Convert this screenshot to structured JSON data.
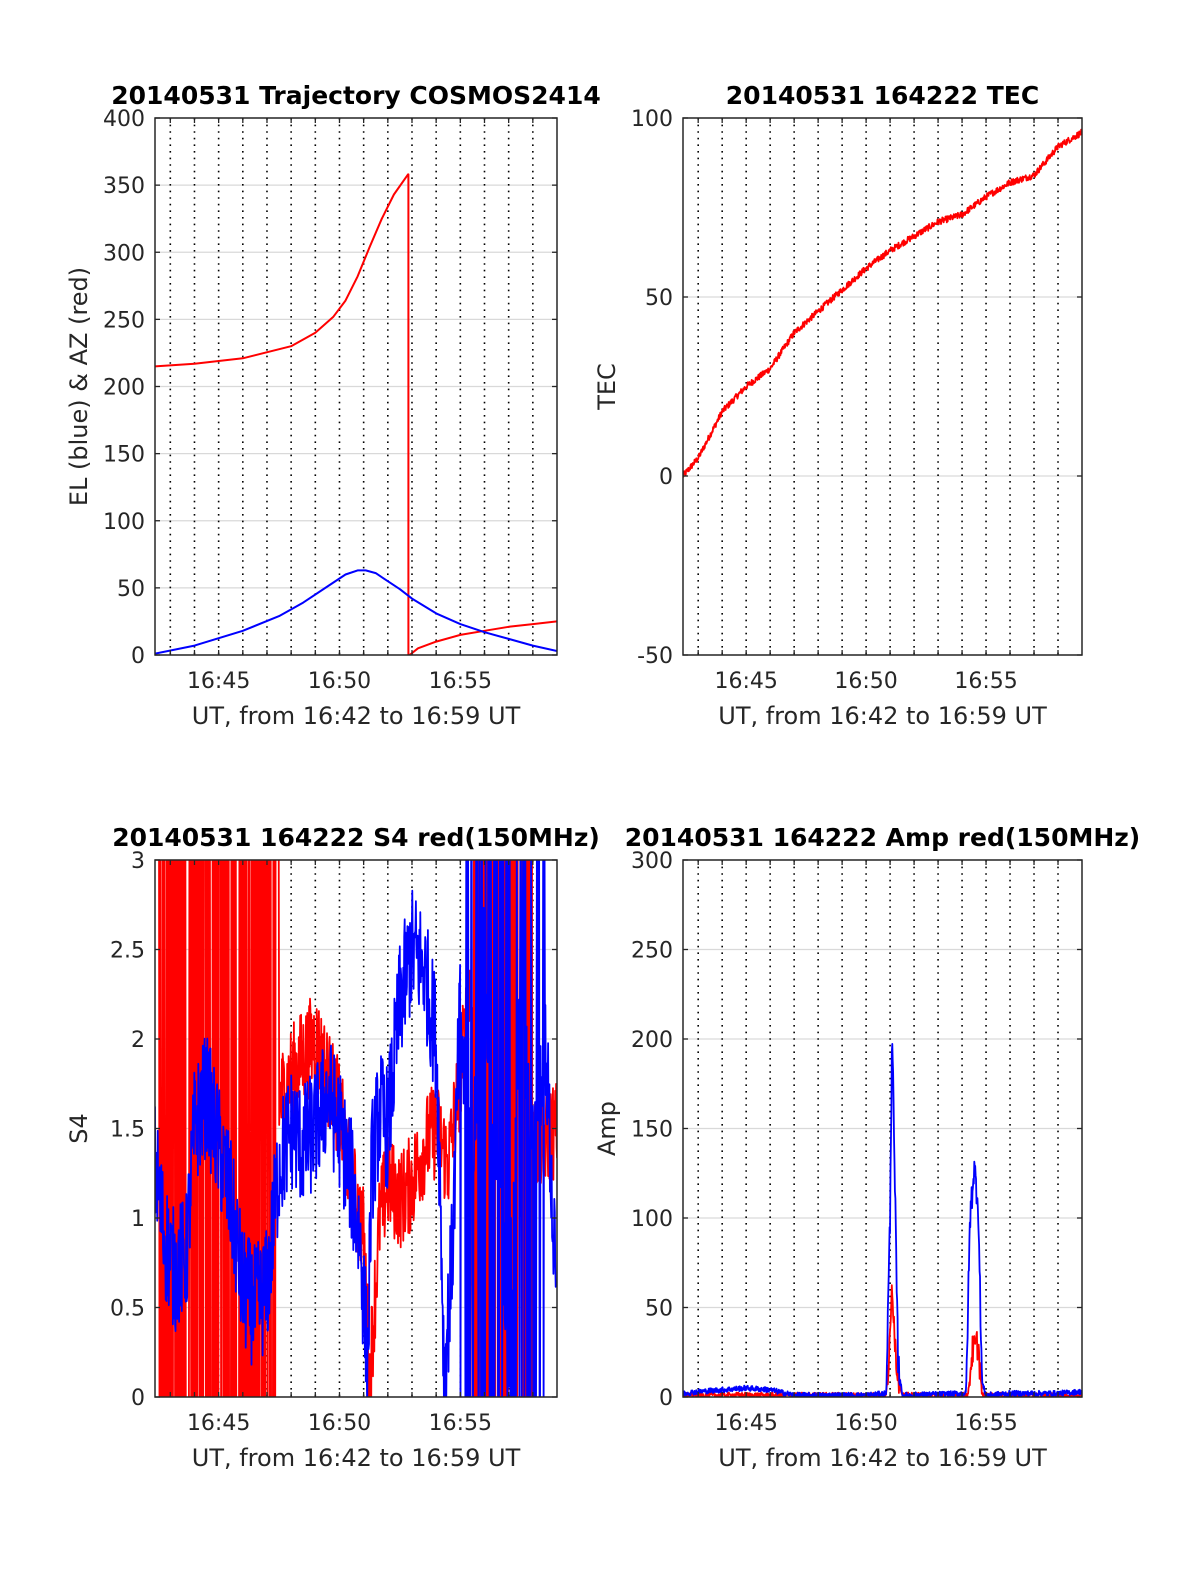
{
  "colors": {
    "el": "#0000ff",
    "az": "#ff0000",
    "grid": "#d9d9d9",
    "axis": "#262626"
  },
  "chart_data": [
    {
      "type": "line",
      "title": "20140531 Trajectory COSMOS2414",
      "xlabel": "UT, from 16:42 to 16:59 UT",
      "ylabel": "EL (blue) & AZ (red)",
      "xlim": [
        "16:42:22",
        "16:59:00"
      ],
      "ylim": [
        0,
        400
      ],
      "xticks": [
        "16:45",
        "16:50",
        "16:55"
      ],
      "yticks": [
        "0",
        "50",
        "100",
        "150",
        "200",
        "250",
        "300",
        "350",
        "400"
      ],
      "grid": "horizontal solid, vertical dotted every minute",
      "series": [
        {
          "color": "#ff0000",
          "x": [
            "16:42:22",
            "16:44:00",
            "16:46:00",
            "16:48:00",
            "16:49:00",
            "16:49:45",
            "16:50:15",
            "16:50:45",
            "16:51:15",
            "16:51:45",
            "16:52:15",
            "16:52:50",
            "16:52:54",
            "16:53:15",
            "16:54:00",
            "16:55:00",
            "16:56:00",
            "16:57:00",
            "16:58:00",
            "16:59:00"
          ],
          "values": [
            215,
            217,
            221,
            230,
            240,
            252,
            264,
            282,
            304,
            325,
            343,
            358,
            0,
            5,
            10,
            15,
            18,
            21,
            23,
            25
          ]
        },
        {
          "color": "#0000ff",
          "x": [
            "16:42:22",
            "16:44:00",
            "16:46:00",
            "16:47:30",
            "16:48:30",
            "16:49:30",
            "16:50:15",
            "16:50:45",
            "16:51:05",
            "16:51:30",
            "16:52:00",
            "16:52:30",
            "16:53:00",
            "16:54:00",
            "16:55:00",
            "16:56:00",
            "16:57:00",
            "16:58:00",
            "16:59:00"
          ],
          "values": [
            1,
            7,
            18,
            29,
            39,
            51,
            60,
            63,
            63,
            61,
            55,
            49,
            42,
            31,
            23,
            17,
            12,
            7,
            3
          ]
        }
      ]
    },
    {
      "type": "line",
      "title": "20140531 164222 TEC",
      "xlabel": "UT, from 16:42 to 16:59 UT",
      "ylabel": "TEC",
      "xlim": [
        "16:42:22",
        "16:59:00"
      ],
      "ylim": [
        -50,
        100
      ],
      "xticks": [
        "16:45",
        "16:50",
        "16:55"
      ],
      "yticks": [
        "-50",
        "0",
        "50",
        "100"
      ],
      "series": [
        {
          "color": "#ff0000",
          "x": [
            "16:42:22",
            "16:43:00",
            "16:44:00",
            "16:45:00",
            "16:46:00",
            "16:47:00",
            "16:48:00",
            "16:49:00",
            "16:50:00",
            "16:51:00",
            "16:52:00",
            "16:53:00",
            "16:54:00",
            "16:55:00",
            "16:56:00",
            "16:57:00",
            "16:58:00",
            "16:59:00"
          ],
          "values": [
            0,
            5,
            18,
            25,
            30,
            40,
            46,
            52,
            58,
            63,
            67,
            71,
            73,
            78,
            82,
            84,
            92,
            96
          ]
        }
      ]
    },
    {
      "type": "line",
      "title": "20140531 164222 S4 red(150MHz)",
      "xlabel": "UT, from 16:42 to 16:59 UT",
      "ylabel": "S4",
      "xlim": [
        "16:42:22",
        "16:59:00"
      ],
      "ylim": [
        0,
        3
      ],
      "xticks": [
        "16:45",
        "16:50",
        "16:55"
      ],
      "yticks": [
        "0",
        "0.5",
        "1",
        "1.5",
        "2",
        "2.5",
        "3"
      ],
      "series": [
        {
          "color": "#ff0000",
          "x": [
            "16:42:22",
            "16:43:00",
            "16:44:00",
            "16:45:00",
            "16:46:00",
            "16:47:00",
            "16:48:00",
            "16:49:00",
            "16:50:00",
            "16:50:30",
            "16:51:00",
            "16:51:15",
            "16:51:40",
            "16:52:00",
            "16:52:30",
            "16:53:00",
            "16:53:30",
            "16:54:00",
            "16:54:30",
            "16:55:00",
            "16:55:30",
            "16:56:00",
            "16:57:00",
            "16:58:00",
            "16:59:00"
          ],
          "values": [
            1.0,
            1.5,
            1.6,
            1.4,
            1.3,
            1.5,
            1.8,
            2.0,
            1.6,
            1.2,
            0.9,
            0.1,
            1.0,
            1.2,
            1.1,
            1.2,
            1.4,
            1.5,
            1.3,
            1.8,
            2.4,
            2.8,
            1.6,
            1.4,
            1.5
          ]
        },
        {
          "color": "#0000ff",
          "x": [
            "16:42:22",
            "16:42:45",
            "16:43:10",
            "16:43:40",
            "16:44:00",
            "16:44:30",
            "16:45:00",
            "16:45:30",
            "16:46:00",
            "16:46:30",
            "16:47:00",
            "16:47:30",
            "16:48:00",
            "16:48:30",
            "16:49:00",
            "16:49:30",
            "16:50:00",
            "16:50:30",
            "16:50:50",
            "16:51:10",
            "16:51:20",
            "16:51:40",
            "16:52:00",
            "16:52:30",
            "16:53:00",
            "16:53:30",
            "16:54:00",
            "16:54:10",
            "16:54:20",
            "16:54:40",
            "16:55:00",
            "16:55:30",
            "16:56:00",
            "16:56:30",
            "16:57:00",
            "16:57:30",
            "16:58:00",
            "16:58:30",
            "16:59:00"
          ],
          "values": [
            1.3,
            0.9,
            0.7,
            0.8,
            1.5,
            1.7,
            1.4,
            1.1,
            0.6,
            0.5,
            0.6,
            1.3,
            1.5,
            1.4,
            1.5,
            1.7,
            1.5,
            1.2,
            0.9,
            0.2,
            1.3,
            1.6,
            1.5,
            2.2,
            2.5,
            2.4,
            2.0,
            1.2,
            0.1,
            0.8,
            2.2,
            1.2,
            2.5,
            1.4,
            0.3,
            2.3,
            1.3,
            2.1,
            0.4
          ]
        }
      ]
    },
    {
      "type": "line",
      "title": "20140531 164222 Amp red(150MHz)",
      "xlabel": "UT, from 16:42 to 16:59 UT",
      "ylabel": "Amp",
      "xlim": [
        "16:42:22",
        "16:59:00"
      ],
      "ylim": [
        0,
        300
      ],
      "xticks": [
        "16:45",
        "16:50",
        "16:55"
      ],
      "yticks": [
        "0",
        "50",
        "100",
        "150",
        "200",
        "250",
        "300"
      ],
      "series": [
        {
          "color": "#ff0000",
          "x": [
            "16:42:22",
            "16:50:50",
            "16:51:00",
            "16:51:05",
            "16:51:15",
            "16:51:30",
            "16:54:15",
            "16:54:25",
            "16:54:40",
            "16:54:50",
            "16:59:00"
          ],
          "values": [
            1,
            1,
            30,
            65,
            20,
            1,
            1,
            25,
            30,
            1,
            1
          ]
        },
        {
          "color": "#0000ff",
          "x": [
            "16:42:22",
            "16:43:00",
            "16:44:00",
            "16:45:00",
            "16:46:00",
            "16:47:00",
            "16:48:00",
            "16:49:00",
            "16:50:00",
            "16:50:50",
            "16:51:00",
            "16:51:05",
            "16:51:10",
            "16:51:20",
            "16:51:30",
            "16:54:10",
            "16:54:20",
            "16:54:30",
            "16:54:40",
            "16:54:50",
            "16:55:00",
            "16:56:00",
            "16:57:00",
            "16:58:00",
            "16:59:00"
          ],
          "values": [
            2,
            3,
            4,
            5,
            4,
            1,
            1,
            1,
            1,
            2,
            100,
            210,
            140,
            20,
            1,
            2,
            100,
            128,
            110,
            8,
            1,
            2,
            2,
            2,
            3
          ]
        }
      ]
    }
  ]
}
